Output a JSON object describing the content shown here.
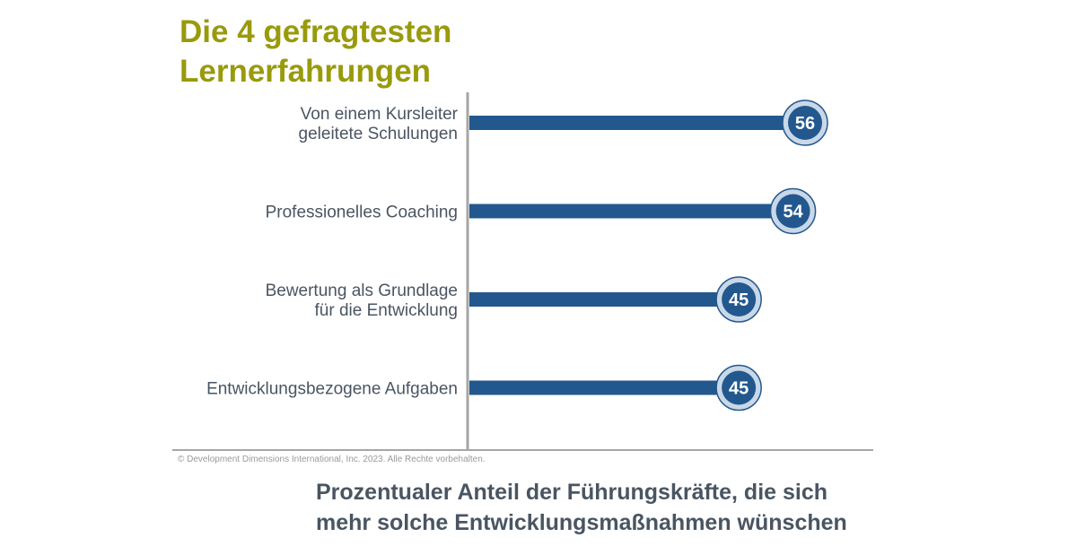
{
  "title_lines": [
    "Die 4 gefragtesten",
    "Lernerfahrungen"
  ],
  "subtitle_lines": [
    "Prozentualer Anteil der Führungskräfte, die sich",
    "mehr solche Entwicklungsmaßnahmen wünschen"
  ],
  "copyright": "© Development Dimensions International, Inc. 2023. Alle Rechte vorbehalten.",
  "colors": {
    "title": "#999a0c",
    "bar": "#23588e",
    "badge_fill": "#23588e",
    "badge_ring": "#c9d8e8",
    "axis": "#a6a6a6",
    "text": "#4a5562"
  },
  "chart_data": {
    "type": "bar",
    "orientation": "horizontal",
    "categories": [
      [
        "Von einem Kursleiter",
        "geleitete Schulungen"
      ],
      [
        "Professionelles Coaching"
      ],
      [
        "Bewertung als Grundlage",
        "für die Entwicklung"
      ],
      [
        "Entwicklungsbezogene Aufgaben"
      ]
    ],
    "values": [
      56,
      54,
      45,
      45
    ],
    "value_labels": [
      "56",
      "54",
      "45",
      "45"
    ],
    "xlim": [
      0,
      56
    ],
    "grid": false,
    "legend": "none"
  }
}
